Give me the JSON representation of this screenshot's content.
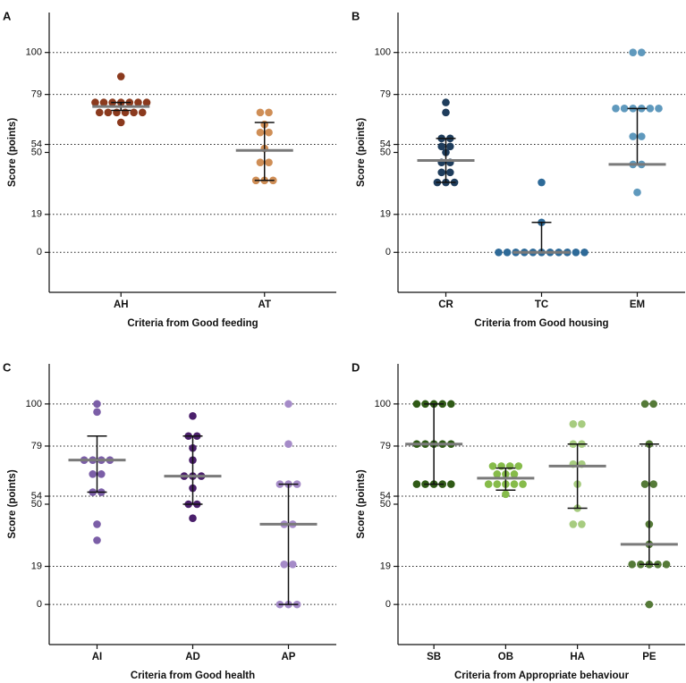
{
  "chart_data": [
    {
      "type": "scatter",
      "panel_label": "A",
      "xlabel": "Criteria from Good feeding",
      "ylabel": "Score (points)",
      "ylim": [
        -20,
        120
      ],
      "yticks": [
        0,
        19,
        50,
        54,
        79,
        100
      ],
      "grid_lines": [
        0,
        19,
        54,
        79,
        100
      ],
      "groups": [
        {
          "name": "AH",
          "color": "#8b3a1e",
          "median": 73,
          "lower": 71,
          "upper": 75,
          "points": [
            88,
            75,
            75,
            75,
            75,
            75,
            75,
            75,
            70,
            70,
            70,
            70,
            70,
            70,
            65
          ]
        },
        {
          "name": "AT",
          "color": "#cf8e56",
          "median": 51,
          "lower": 36,
          "upper": 65,
          "points": [
            70,
            70,
            60,
            60,
            52,
            45,
            45,
            36,
            36,
            36,
            64
          ]
        }
      ]
    },
    {
      "type": "scatter",
      "panel_label": "B",
      "xlabel": "Criteria from Good housing",
      "ylabel": "Score (points)",
      "ylim": [
        -20,
        120
      ],
      "yticks": [
        0,
        19,
        50,
        54,
        79,
        100
      ],
      "grid_lines": [
        0,
        19,
        54,
        79,
        100
      ],
      "groups": [
        {
          "name": "CR",
          "color": "#1f3d5c",
          "median": 46,
          "lower": 35,
          "upper": 57,
          "points": [
            75,
            70,
            57,
            57,
            53,
            53,
            50,
            45,
            45,
            40,
            40,
            35,
            35,
            35
          ]
        },
        {
          "name": "TC",
          "color": "#2e6a98",
          "median": 0,
          "lower": 0,
          "upper": 15,
          "points": [
            35,
            15,
            0,
            0,
            0,
            0,
            0,
            0,
            0,
            0,
            0,
            0,
            0
          ]
        },
        {
          "name": "EM",
          "color": "#5f99bd",
          "median": 44,
          "lower": 44,
          "upper": 72,
          "points": [
            100,
            100,
            72,
            72,
            72,
            72,
            72,
            72,
            58,
            58,
            44,
            44,
            30
          ]
        }
      ]
    },
    {
      "type": "scatter",
      "panel_label": "C",
      "xlabel": "Criteria from Good health",
      "ylabel": "Score (points)",
      "ylim": [
        -20,
        120
      ],
      "yticks": [
        0,
        19,
        50,
        54,
        79,
        100
      ],
      "grid_lines": [
        0,
        19,
        54,
        79,
        100
      ],
      "groups": [
        {
          "name": "AI",
          "color": "#7b5ea7",
          "median": 72,
          "lower": 56,
          "upper": 84,
          "points": [
            100,
            96,
            72,
            72,
            72,
            72,
            65,
            65,
            56,
            56,
            40,
            32
          ]
        },
        {
          "name": "AD",
          "color": "#4a1f6b",
          "median": 64,
          "lower": 50,
          "upper": 84,
          "points": [
            94,
            84,
            84,
            78,
            72,
            64,
            64,
            64,
            58,
            50,
            50,
            43
          ]
        },
        {
          "name": "AP",
          "color": "#a58bc8",
          "median": 40,
          "lower": 0,
          "upper": 60,
          "points": [
            100,
            80,
            60,
            60,
            60,
            40,
            40,
            20,
            20,
            0,
            0,
            0
          ]
        }
      ]
    },
    {
      "type": "scatter",
      "panel_label": "D",
      "xlabel": "Criteria from Appropriate behaviour",
      "ylabel": "Score (points)",
      "ylim": [
        -20,
        120
      ],
      "yticks": [
        0,
        19,
        50,
        54,
        79,
        100
      ],
      "grid_lines": [
        0,
        19,
        54,
        79,
        100
      ],
      "groups": [
        {
          "name": "SB",
          "color": "#2f5a16",
          "median": 80,
          "lower": 60,
          "upper": 100,
          "points": [
            100,
            100,
            100,
            100,
            100,
            80,
            80,
            80,
            80,
            80,
            60,
            60,
            60,
            60,
            60
          ]
        },
        {
          "name": "OB",
          "color": "#86bb4a",
          "median": 63,
          "lower": 57,
          "upper": 68,
          "points": [
            69,
            69,
            69,
            69,
            65,
            65,
            65,
            60,
            60,
            60,
            60,
            60,
            55
          ]
        },
        {
          "name": "HA",
          "color": "#a7cc80",
          "median": 69,
          "lower": 48,
          "upper": 80,
          "points": [
            90,
            90,
            80,
            80,
            70,
            70,
            60,
            48,
            40,
            40
          ]
        },
        {
          "name": "PE",
          "color": "#557a38",
          "median": 30,
          "lower": 20,
          "upper": 80,
          "points": [
            100,
            100,
            80,
            60,
            60,
            40,
            30,
            20,
            20,
            20,
            20,
            20,
            0
          ]
        }
      ]
    }
  ]
}
